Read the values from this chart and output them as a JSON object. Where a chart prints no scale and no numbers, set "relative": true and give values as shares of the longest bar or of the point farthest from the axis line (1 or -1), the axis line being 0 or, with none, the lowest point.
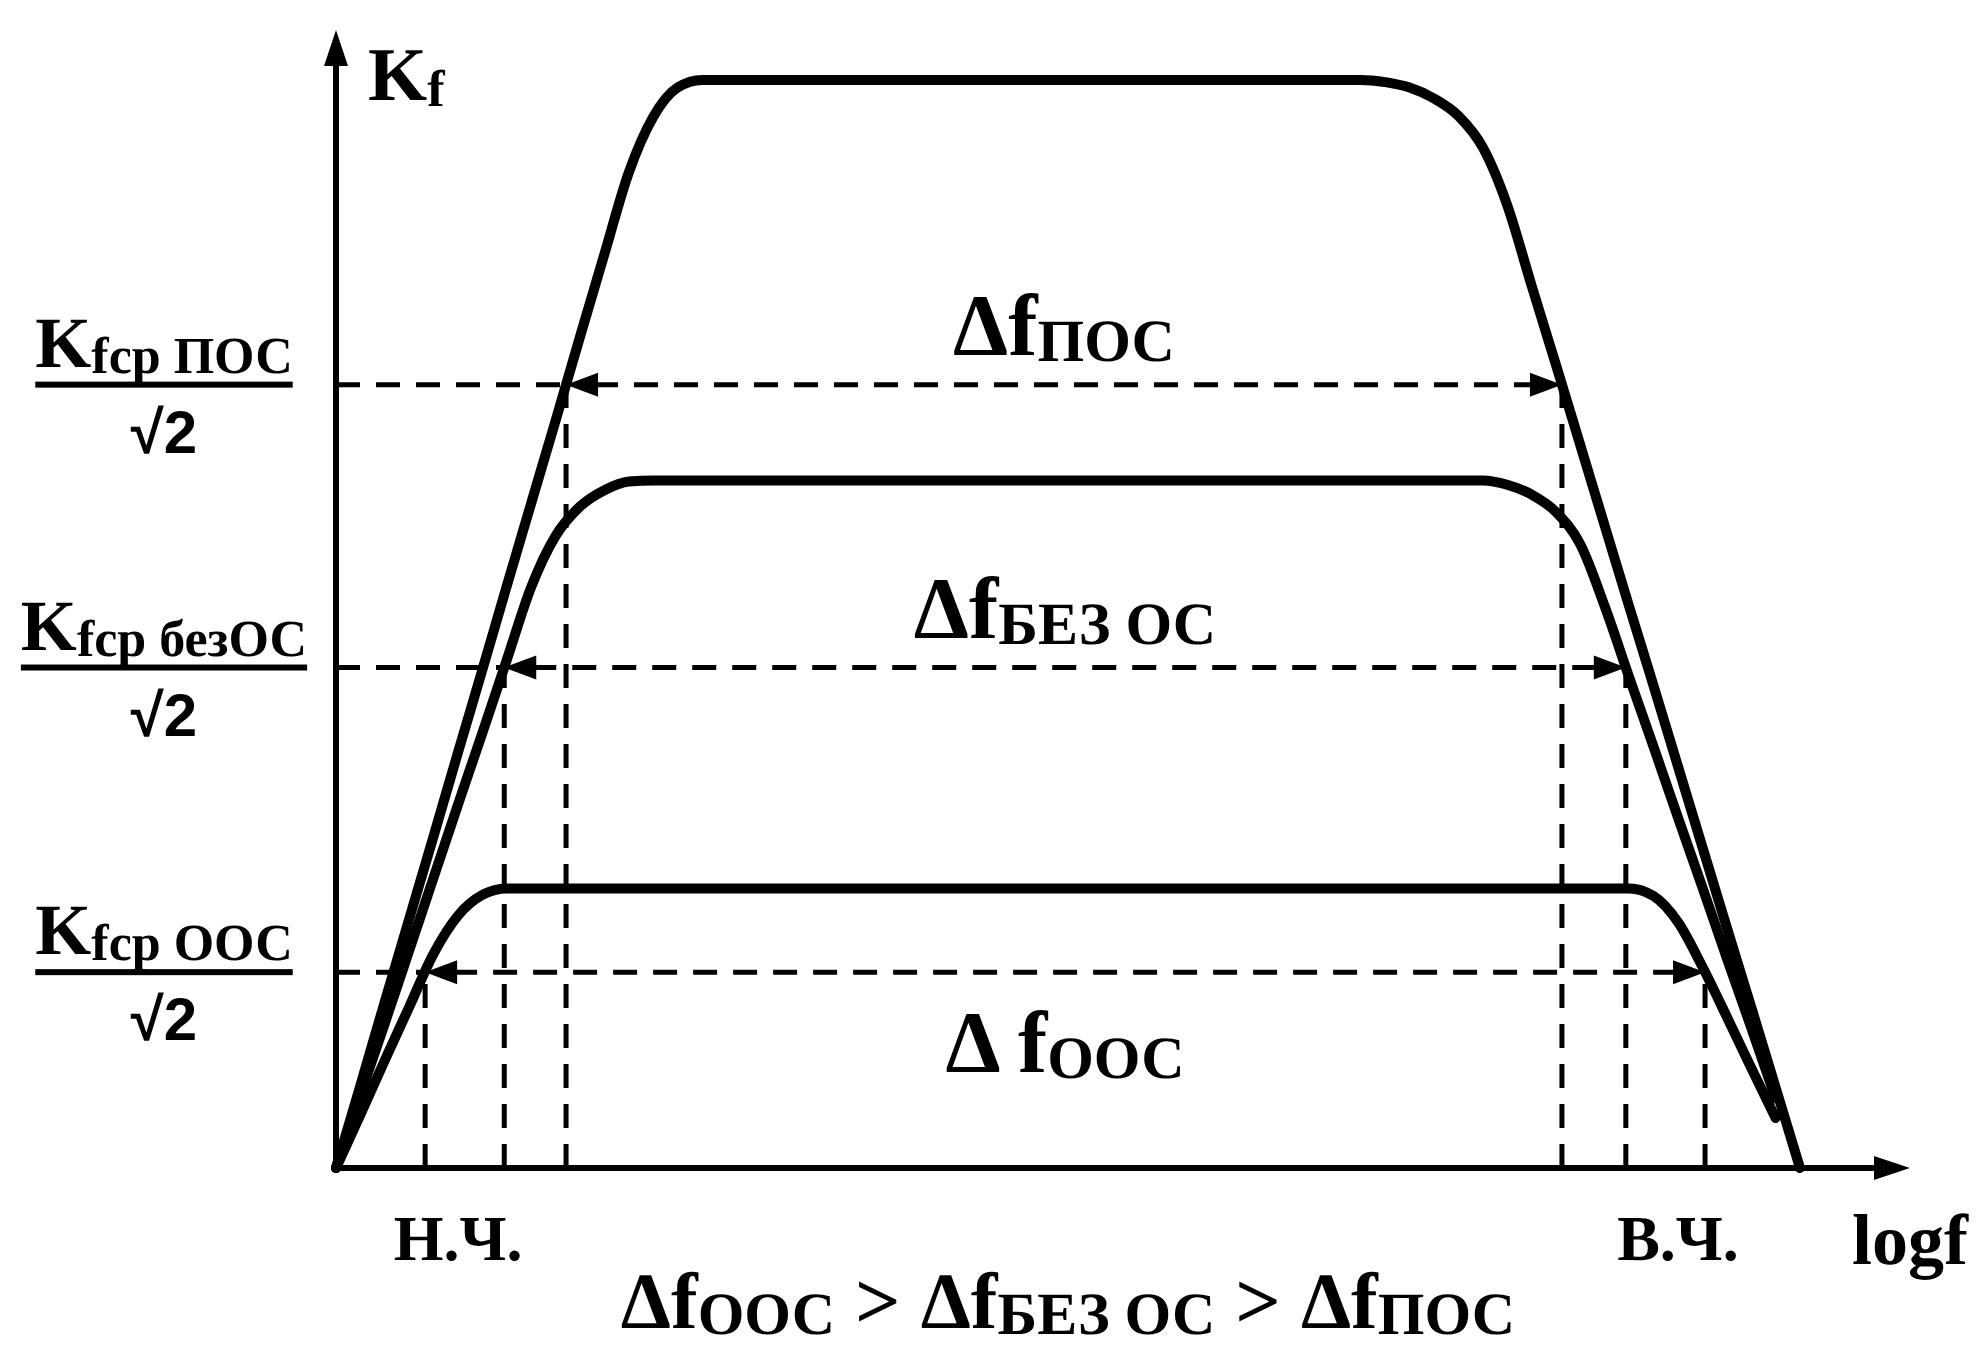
{
  "chart_data": {
    "type": "line",
    "relative": true,
    "line_style": "solid",
    "xlabel": "logf",
    "ylabel": "K$_{f}$",
    "categories": [
      null,
      null,
      null,
      null,
      null,
      "Н.Ч.",
      null,
      null,
      null,
      null,
      null,
      null,
      null,
      null,
      null,
      null,
      null,
      null,
      null,
      null,
      null,
      null,
      null,
      null,
      null,
      null,
      null,
      null,
      null,
      null,
      null,
      null,
      null,
      null,
      null,
      null,
      null,
      null,
      null,
      null,
      null,
      null,
      null,
      null,
      null,
      null,
      null,
      null,
      null,
      null,
      null,
      null,
      null,
      null,
      null,
      "В.Ч.",
      null,
      null,
      null,
      null,
      null
    ],
    "series": [
      {
        "color": "#000000",
        "values": [
          0,
          0.076,
          0.153,
          0.229,
          0.305,
          0.382,
          0.458,
          0.535,
          0.611,
          0.687,
          0.764,
          0.84,
          0.915,
          0.966,
          0.993,
          1,
          1,
          1,
          1,
          1,
          1,
          1,
          1,
          1,
          1,
          1,
          1,
          1,
          1,
          1,
          1,
          1,
          1,
          1,
          1,
          1,
          1,
          1,
          1,
          1,
          1,
          1,
          1,
          0.998,
          0.993,
          0.983,
          0.967,
          0.938,
          0.885,
          0.811,
          0.738,
          0.664,
          0.59,
          0.516,
          0.443,
          0.369,
          0.295,
          0.221,
          0.148,
          0.074,
          0
        ]
      },
      {
        "color": "#000000",
        "values": [
          0,
          0.067,
          0.133,
          0.2,
          0.267,
          0.334,
          0.4,
          0.467,
          0.534,
          0.581,
          0.608,
          0.623,
          0.631,
          0.632,
          0.632,
          0.632,
          0.632,
          0.632,
          0.632,
          0.632,
          0.632,
          0.632,
          0.632,
          0.632,
          0.632,
          0.632,
          0.632,
          0.632,
          0.632,
          0.632,
          0.632,
          0.632,
          0.632,
          0.632,
          0.632,
          0.632,
          0.632,
          0.632,
          0.632,
          0.632,
          0.632,
          0.632,
          0.632,
          0.632,
          0.632,
          0.632,
          0.632,
          0.632,
          0.628,
          0.619,
          0.603,
          0.573,
          0.516,
          0.451,
          0.387,
          0.322,
          0.258,
          0.193,
          0.129,
          0.064,
          null
        ]
      },
      {
        "color": "#000000",
        "values": [
          0,
          0.049,
          0.099,
          0.148,
          0.197,
          0.232,
          0.251,
          0.257,
          0.257,
          0.257,
          0.257,
          0.257,
          0.257,
          0.257,
          0.257,
          0.257,
          0.257,
          0.257,
          0.257,
          0.257,
          0.257,
          0.257,
          0.257,
          0.257,
          0.257,
          0.257,
          0.257,
          0.257,
          0.257,
          0.257,
          0.257,
          0.257,
          0.257,
          0.257,
          0.257,
          0.257,
          0.257,
          0.257,
          0.257,
          0.257,
          0.257,
          0.257,
          0.257,
          0.257,
          0.257,
          0.257,
          0.257,
          0.257,
          0.257,
          0.257,
          0.257,
          0.257,
          0.257,
          0.257,
          0.25,
          0.226,
          0.185,
          0.139,
          0.092,
          0.046,
          null
        ]
      }
    ],
    "ref_lines": [
      {
        "axis": "y",
        "value": 0.72,
        "label": "K$_{fср ПОС}$\n√2",
        "color": "#000000",
        "line_style": "dashed"
      },
      {
        "axis": "y",
        "value": 0.46,
        "label": "K$_{fср безОС}$\n√2",
        "color": "#000000",
        "line_style": "dashed"
      },
      {
        "axis": "y",
        "value": 0.18,
        "label": "K$_{fср ООС}$\n√2",
        "color": "#000000",
        "line_style": "dashed"
      }
    ],
    "annotations": [
      {
        "text": "Δf$_{ПОС}$",
        "y": 0.72
      },
      {
        "text": "Δf$_{БЕЗ ОС}$",
        "y": 0.46
      },
      {
        "text": "Δ f$_{ООС}$",
        "y": 0.18
      },
      "Δf$_{ООС}$ > Δf$_{БЕЗ ОС}$ > Δf$_{ПОС}$"
    ]
  }
}
